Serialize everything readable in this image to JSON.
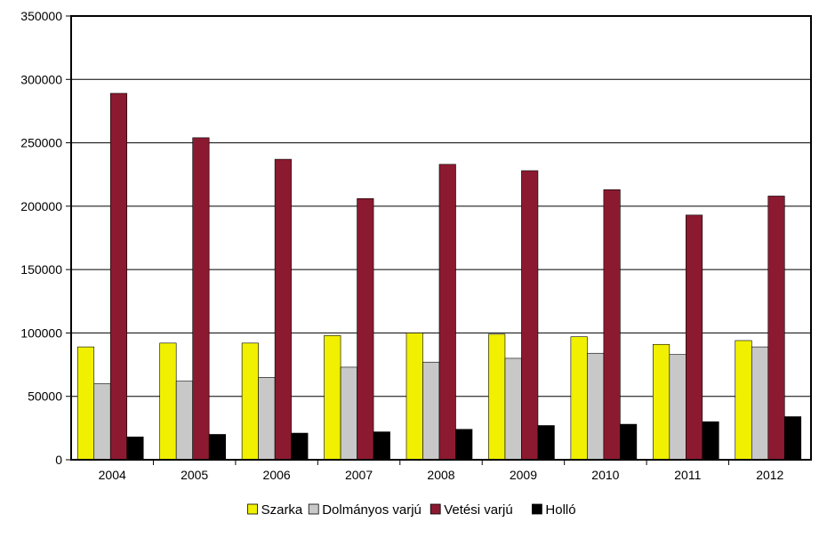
{
  "chart_data": {
    "type": "bar",
    "title": "",
    "xlabel": "",
    "ylabel": "",
    "categories": [
      "2004",
      "2005",
      "2006",
      "2007",
      "2008",
      "2009",
      "2010",
      "2011",
      "2012"
    ],
    "series": [
      {
        "name": "Szarka",
        "color": "#f0f000",
        "values": [
          89000,
          92000,
          92000,
          98000,
          100000,
          99000,
          97000,
          91000,
          94000
        ]
      },
      {
        "name": "Dolmányos varjú",
        "color": "#c8c8c8",
        "values": [
          60000,
          62000,
          65000,
          73000,
          77000,
          80000,
          84000,
          83000,
          89000
        ]
      },
      {
        "name": "Vetési varjú",
        "color": "#8b1a30",
        "values": [
          289000,
          254000,
          237000,
          206000,
          233000,
          228000,
          213000,
          193000,
          208000
        ]
      },
      {
        "name": "Holló",
        "color": "#000000",
        "values": [
          18000,
          20000,
          21000,
          22000,
          24000,
          27000,
          28000,
          30000,
          34000
        ]
      }
    ],
    "ylim": [
      0,
      350000
    ],
    "yticks": [
      "0",
      "50000",
      "100000",
      "150000",
      "200000",
      "250000",
      "300000",
      "350000"
    ],
    "grid": true,
    "legend_position": "bottom"
  }
}
